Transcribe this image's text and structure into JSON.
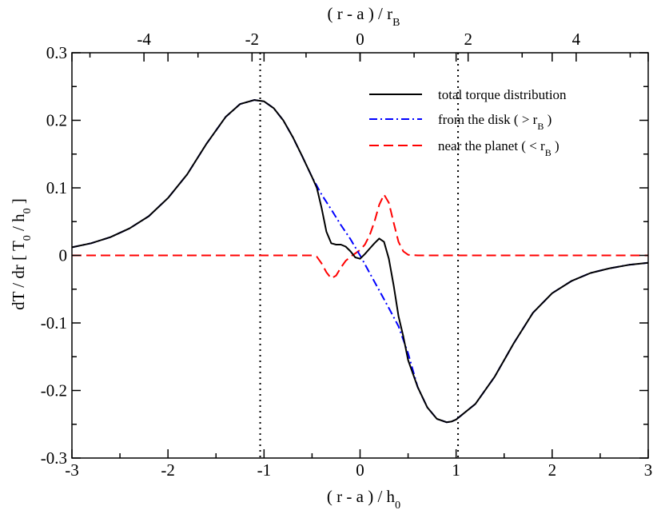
{
  "chart_data": {
    "type": "line",
    "title": "",
    "xlabel": "( r - a ) / h",
    "xlabel_sub": "0",
    "top_xlabel": "( r - a ) / r",
    "top_xlabel_sub": "B",
    "ylabel_parts": [
      "dT / dr [ T",
      "0",
      " / h",
      "0",
      " ]"
    ],
    "xlim": [
      -3,
      3
    ],
    "ylim": [
      -0.3,
      0.3
    ],
    "x_ticks": [
      -3,
      -2,
      -1,
      0,
      1,
      2,
      3
    ],
    "x_tick_labels": [
      "-3",
      "-2",
      "-1",
      "0",
      "1",
      "2",
      "3"
    ],
    "y_ticks": [
      -0.3,
      -0.2,
      -0.1,
      0,
      0.1,
      0.2,
      0.3
    ],
    "y_tick_labels": [
      "-0.3",
      "-0.2",
      "-0.1",
      "0",
      "0.1",
      "0.2",
      "0.3"
    ],
    "top_ticks": [
      -4,
      -2,
      0,
      2,
      4
    ],
    "top_tick_labels": [
      "-4",
      "-2",
      "0",
      "2",
      "4"
    ],
    "top_axis_scale": 0.5625,
    "vlines": [
      -1.04,
      1.02
    ],
    "grid": false,
    "legend_position": "top-right",
    "series": [
      {
        "name": "total torque distribution",
        "color": "#000000",
        "dash": "solid",
        "x": [
          -3.0,
          -2.8,
          -2.6,
          -2.4,
          -2.2,
          -2.0,
          -1.8,
          -1.6,
          -1.4,
          -1.25,
          -1.1,
          -1.0,
          -0.9,
          -0.8,
          -0.7,
          -0.6,
          -0.5,
          -0.45,
          -0.4,
          -0.35,
          -0.3,
          -0.25,
          -0.2,
          -0.15,
          -0.1,
          -0.05,
          0.0,
          0.05,
          0.1,
          0.15,
          0.2,
          0.25,
          0.3,
          0.35,
          0.4,
          0.45,
          0.5,
          0.6,
          0.7,
          0.8,
          0.9,
          0.95,
          1.0,
          1.2,
          1.4,
          1.6,
          1.8,
          2.0,
          2.2,
          2.4,
          2.6,
          2.8,
          3.0
        ],
        "y": [
          0.012,
          0.018,
          0.027,
          0.04,
          0.058,
          0.085,
          0.12,
          0.165,
          0.205,
          0.224,
          0.23,
          0.228,
          0.218,
          0.2,
          0.175,
          0.146,
          0.116,
          0.1,
          0.07,
          0.035,
          0.018,
          0.016,
          0.016,
          0.013,
          0.006,
          -0.003,
          -0.005,
          0.002,
          0.01,
          0.018,
          0.025,
          0.02,
          -0.005,
          -0.045,
          -0.09,
          -0.12,
          -0.155,
          -0.195,
          -0.225,
          -0.242,
          -0.247,
          -0.246,
          -0.243,
          -0.22,
          -0.18,
          -0.13,
          -0.085,
          -0.056,
          -0.038,
          -0.026,
          -0.019,
          -0.014,
          -0.011
        ]
      },
      {
        "name": "from the disk ( > r",
        "name_sub": "B",
        "name_tail": " )",
        "color": "#0000ff",
        "dash": "dashdot",
        "x": [
          -3.0,
          -2.8,
          -2.6,
          -2.4,
          -2.2,
          -2.0,
          -1.8,
          -1.6,
          -1.4,
          -1.25,
          -1.1,
          -1.0,
          -0.9,
          -0.8,
          -0.7,
          -0.6,
          -0.5,
          -0.4,
          -0.3,
          -0.2,
          -0.1,
          0.0,
          0.1,
          0.2,
          0.3,
          0.4,
          0.5,
          0.6,
          0.7,
          0.8,
          0.9,
          0.95,
          1.0,
          1.2,
          1.4,
          1.6,
          1.8,
          2.0,
          2.2,
          2.4,
          2.6,
          2.8,
          3.0
        ],
        "y": [
          0.012,
          0.018,
          0.027,
          0.04,
          0.058,
          0.085,
          0.12,
          0.165,
          0.205,
          0.224,
          0.23,
          0.228,
          0.218,
          0.2,
          0.175,
          0.146,
          0.116,
          0.09,
          0.068,
          0.045,
          0.024,
          0.0,
          -0.026,
          -0.052,
          -0.078,
          -0.105,
          -0.145,
          -0.195,
          -0.225,
          -0.242,
          -0.247,
          -0.246,
          -0.243,
          -0.22,
          -0.18,
          -0.13,
          -0.085,
          -0.056,
          -0.038,
          -0.026,
          -0.019,
          -0.014,
          -0.011
        ]
      },
      {
        "name": "near the planet ( < r",
        "name_sub": "B",
        "name_tail": " )",
        "color": "#ff0000",
        "dash": "dashed",
        "x": [
          -3.0,
          -0.6,
          -0.5,
          -0.45,
          -0.4,
          -0.35,
          -0.3,
          -0.25,
          -0.2,
          -0.15,
          -0.1,
          -0.05,
          0.0,
          0.05,
          0.1,
          0.15,
          0.2,
          0.25,
          0.3,
          0.35,
          0.4,
          0.45,
          0.5,
          0.6,
          3.0
        ],
        "y": [
          0.0,
          0.0,
          0.0,
          -0.002,
          -0.012,
          -0.025,
          -0.034,
          -0.03,
          -0.018,
          -0.008,
          -0.002,
          0.003,
          0.008,
          0.016,
          0.03,
          0.05,
          0.075,
          0.09,
          0.078,
          0.048,
          0.02,
          0.006,
          0.001,
          0.0,
          0.0
        ]
      }
    ]
  }
}
